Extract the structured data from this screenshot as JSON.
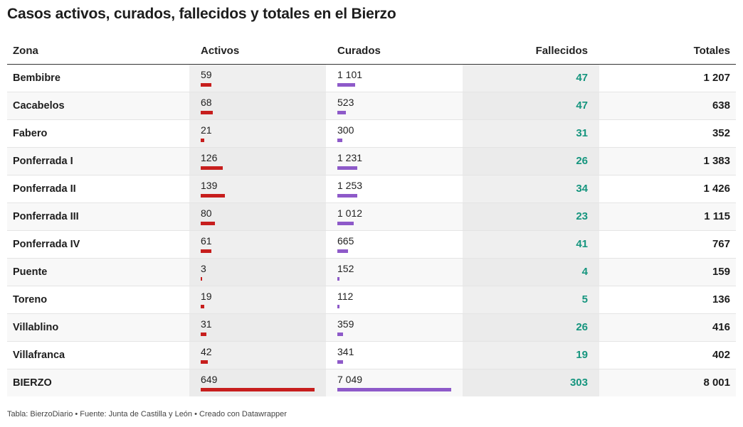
{
  "title": "Casos activos, curados, fallecidos y totales en el Bierzo",
  "columns": {
    "zona": "Zona",
    "activos": "Activos",
    "curados": "Curados",
    "fallecidos": "Fallecidos",
    "totales": "Totales"
  },
  "colors": {
    "activos_bar": "#c71e1d",
    "curados_bar": "#8e5ac9",
    "fallecidos_text": "#15957e"
  },
  "footer": "Tabla: BierzoDiario • Fuente: Junta de Castilla y León • Creado con Datawrapper",
  "chart_data": {
    "type": "table",
    "title": "Casos activos, curados, fallecidos y totales en el Bierzo",
    "columns": [
      "Zona",
      "Activos",
      "Curados",
      "Fallecidos",
      "Totales"
    ],
    "rows": [
      {
        "zona": "Bembibre",
        "activos": 59,
        "activos_label": "59",
        "curados": 1101,
        "curados_label": "1 101",
        "fallecidos": "47",
        "totales": "1 207"
      },
      {
        "zona": "Cacabelos",
        "activos": 68,
        "activos_label": "68",
        "curados": 523,
        "curados_label": "523",
        "fallecidos": "47",
        "totales": "638"
      },
      {
        "zona": "Fabero",
        "activos": 21,
        "activos_label": "21",
        "curados": 300,
        "curados_label": "300",
        "fallecidos": "31",
        "totales": "352"
      },
      {
        "zona": "Ponferrada I",
        "activos": 126,
        "activos_label": "126",
        "curados": 1231,
        "curados_label": "1 231",
        "fallecidos": "26",
        "totales": "1 383"
      },
      {
        "zona": "Ponferrada II",
        "activos": 139,
        "activos_label": "139",
        "curados": 1253,
        "curados_label": "1 253",
        "fallecidos": "34",
        "totales": "1 426"
      },
      {
        "zona": "Ponferrada III",
        "activos": 80,
        "activos_label": "80",
        "curados": 1012,
        "curados_label": "1 012",
        "fallecidos": "23",
        "totales": "1 115"
      },
      {
        "zona": "Ponferrada IV",
        "activos": 61,
        "activos_label": "61",
        "curados": 665,
        "curados_label": "665",
        "fallecidos": "41",
        "totales": "767"
      },
      {
        "zona": "Puente",
        "activos": 3,
        "activos_label": "3",
        "curados": 152,
        "curados_label": "152",
        "fallecidos": "4",
        "totales": "159"
      },
      {
        "zona": "Toreno",
        "activos": 19,
        "activos_label": "19",
        "curados": 112,
        "curados_label": "112",
        "fallecidos": "5",
        "totales": "136"
      },
      {
        "zona": "Villablino",
        "activos": 31,
        "activos_label": "31",
        "curados": 359,
        "curados_label": "359",
        "fallecidos": "26",
        "totales": "416"
      },
      {
        "zona": "Villafranca",
        "activos": 42,
        "activos_label": "42",
        "curados": 341,
        "curados_label": "341",
        "fallecidos": "19",
        "totales": "402"
      },
      {
        "zona": "BIERZO",
        "activos": 649,
        "activos_label": "649",
        "curados": 7049,
        "curados_label": "7 049",
        "fallecidos": "303",
        "totales": "8 001"
      }
    ]
  }
}
